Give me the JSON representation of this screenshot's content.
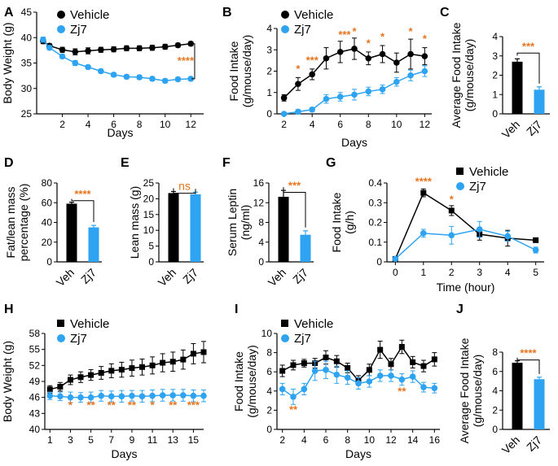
{
  "colors": {
    "vehicle": "#000000",
    "zj7": "#2ea3f2",
    "significance": "#e8741e"
  },
  "legend": {
    "vehicle": "Vehicle",
    "zj7": "Zj7"
  },
  "panels": {
    "A": {
      "letter": "A"
    },
    "B": {
      "letter": "B"
    },
    "C": {
      "letter": "C"
    },
    "D": {
      "letter": "D"
    },
    "E": {
      "letter": "E"
    },
    "F": {
      "letter": "F"
    },
    "G": {
      "letter": "G"
    },
    "H": {
      "letter": "H"
    },
    "I": {
      "letter": "I"
    },
    "J": {
      "letter": "J"
    }
  },
  "chart_data": [
    {
      "id": "A",
      "type": "line",
      "xlabel": "Days",
      "ylabel": "Body Weight (g)",
      "xlim": [
        0,
        13
      ],
      "ylim": [
        25,
        45
      ],
      "xticks": [
        2,
        4,
        6,
        8,
        10,
        12
      ],
      "yticks": [
        25,
        30,
        35,
        40,
        45
      ],
      "legend": true,
      "x": [
        0.5,
        1,
        2,
        3,
        4,
        5,
        6,
        7,
        8,
        9,
        10,
        11,
        12
      ],
      "series": [
        {
          "name": "Vehicle",
          "marker": "circle",
          "values": [
            39.3,
            38.4,
            37.6,
            37.2,
            37.4,
            37.6,
            37.7,
            37.9,
            37.9,
            38.0,
            38.2,
            38.5,
            38.8
          ],
          "errors": [
            0.5,
            0.4,
            0.5,
            0.6,
            0.6,
            0.5,
            0.5,
            0.5,
            0.5,
            0.5,
            0.5,
            0.4,
            0.4
          ]
        },
        {
          "name": "Zj7",
          "marker": "circle",
          "values": [
            39.6,
            38.0,
            36.3,
            35.0,
            34.2,
            33.4,
            32.7,
            32.3,
            32.2,
            31.9,
            31.5,
            31.8,
            31.9
          ],
          "errors": [
            0.5,
            0.4,
            0.4,
            0.5,
            0.4,
            0.4,
            0.4,
            0.4,
            0.4,
            0.4,
            0.4,
            0.4,
            0.4
          ]
        }
      ],
      "annotations": [
        {
          "text": "****",
          "x": 11.6,
          "y": 34.8
        }
      ],
      "bracket": {
        "x": 12.3,
        "y1": 38.8,
        "y2": 31.9
      }
    },
    {
      "id": "B",
      "type": "line",
      "xlabel": "Days",
      "ylabel": "Food Intake (g/mouse/day)",
      "ylabel_lines": [
        "Food Intake",
        "(g/mouse/day)"
      ],
      "xlim": [
        1.5,
        12.5
      ],
      "ylim": [
        0,
        4
      ],
      "xticks": [
        2,
        4,
        6,
        8,
        10,
        12
      ],
      "yticks": [
        0,
        1,
        2,
        3,
        4
      ],
      "legend": true,
      "x": [
        2,
        3,
        4,
        5,
        6,
        7,
        8,
        9,
        10,
        11,
        12
      ],
      "series": [
        {
          "name": "Vehicle",
          "marker": "circle",
          "values": [
            0.75,
            1.4,
            1.85,
            2.6,
            2.9,
            3.05,
            2.6,
            2.8,
            2.4,
            2.8,
            2.7
          ],
          "errors": [
            0.15,
            0.3,
            0.25,
            0.5,
            0.5,
            0.5,
            0.3,
            0.4,
            0.45,
            0.7,
            0.4
          ]
        },
        {
          "name": "Zj7",
          "marker": "circle",
          "values": [
            0.0,
            0.1,
            0.2,
            0.7,
            0.8,
            0.9,
            1.05,
            1.15,
            1.5,
            1.8,
            2.0
          ],
          "errors": [
            0.05,
            0.1,
            0.1,
            0.2,
            0.2,
            0.25,
            0.2,
            0.2,
            0.2,
            0.25,
            0.25
          ]
        }
      ],
      "annotations": [
        {
          "text": "*",
          "x": 3,
          "y": 1.95
        },
        {
          "text": "***",
          "x": 4,
          "y": 2.35
        },
        {
          "text": "***",
          "x": 6.3,
          "y": 3.55
        },
        {
          "text": "*",
          "x": 7,
          "y": 3.7
        },
        {
          "text": "*",
          "x": 8,
          "y": 3.15
        },
        {
          "text": "*",
          "x": 9,
          "y": 3.45
        },
        {
          "text": "*",
          "x": 11,
          "y": 3.7
        },
        {
          "text": "*",
          "x": 12,
          "y": 3.35
        }
      ]
    },
    {
      "id": "C",
      "type": "bar",
      "ylabel": "Average Food Intake (g/mouse/day)",
      "ylabel_lines": [
        "Average Food Intake",
        "(g/mouse/day)"
      ],
      "ylim": [
        0,
        4
      ],
      "yticks": [
        0,
        1,
        2,
        3,
        4
      ],
      "categories": [
        "Veh",
        "Zj7"
      ],
      "values": [
        2.7,
        1.25
      ],
      "errors": [
        0.15,
        0.15
      ],
      "sig": "***",
      "sig_y": 3.4
    },
    {
      "id": "D",
      "type": "bar",
      "ylabel": "Fat/lean mass percentage (%)",
      "ylabel_lines": [
        "Fat/lean mass",
        "percentage (%)"
      ],
      "ylim": [
        0,
        80
      ],
      "yticks": [
        0,
        20,
        40,
        60,
        80
      ],
      "categories": [
        "Veh",
        "Zj7"
      ],
      "values": [
        59,
        35
      ],
      "errors": [
        1.5,
        2
      ],
      "sig": "****",
      "sig_y": 67
    },
    {
      "id": "E",
      "type": "bar",
      "ylabel": "Lean mass (g)",
      "ylim": [
        0,
        25
      ],
      "yticks": [
        0,
        5,
        10,
        15,
        20,
        25
      ],
      "categories": [
        "Veh",
        "Zj7"
      ],
      "values": [
        21.8,
        21.4
      ],
      "errors": [
        0.5,
        0.7
      ],
      "sig": "ns",
      "sig_y": 23.3
    },
    {
      "id": "F",
      "type": "bar",
      "ylabel": "Serum Leptin (ng/ml)",
      "ylabel_lines": [
        "Serum Leptin",
        "(ng/ml)"
      ],
      "ylim": [
        0,
        16
      ],
      "yticks": [
        0,
        4,
        8,
        12,
        16
      ],
      "categories": [
        "Veh",
        "Zj7"
      ],
      "values": [
        13.2,
        5.5
      ],
      "errors": [
        1.3,
        0.8
      ],
      "sig": "***",
      "sig_y": 15.1
    },
    {
      "id": "G",
      "type": "line",
      "xlabel": "Time (hour)",
      "ylabel": "Food Intake (g/h)",
      "ylabel_lines": [
        "Food Intake",
        "(g/h)"
      ],
      "xlim": [
        -0.3,
        5.3
      ],
      "ylim": [
        0,
        0.4
      ],
      "xticks": [
        0,
        1,
        2,
        3,
        4,
        5
      ],
      "yticks": [
        0,
        0.1,
        0.2,
        0.3,
        0.4
      ],
      "legend": true,
      "x": [
        0,
        1,
        2,
        3,
        4,
        5
      ],
      "series": [
        {
          "name": "Vehicle",
          "marker": "square",
          "values": [
            0.015,
            0.35,
            0.26,
            0.14,
            0.12,
            0.11
          ],
          "errors": [
            0.005,
            0.02,
            0.025,
            0.03,
            0.04,
            0.01
          ]
        },
        {
          "name": "Zj7",
          "marker": "circle",
          "values": [
            0.015,
            0.145,
            0.135,
            0.165,
            0.13,
            0.06
          ],
          "errors": [
            0.005,
            0.02,
            0.045,
            0.04,
            0.025,
            0.015
          ]
        }
      ],
      "annotations": [
        {
          "text": "****",
          "x": 1,
          "y": 0.39
        },
        {
          "text": "*",
          "x": 2,
          "y": 0.3
        }
      ]
    },
    {
      "id": "H",
      "type": "line",
      "xlabel": "Days",
      "ylabel": "Body Weight (g)",
      "xlim": [
        0.5,
        16
      ],
      "ylim": [
        40,
        58
      ],
      "xticks": [
        1,
        3,
        5,
        7,
        9,
        11,
        13,
        15
      ],
      "yticks": [
        40,
        43,
        46,
        49,
        52,
        55,
        58
      ],
      "legend": true,
      "x": [
        1,
        2,
        3,
        4,
        5,
        6,
        7,
        8,
        9,
        10,
        11,
        12,
        13,
        14,
        15,
        16
      ],
      "series": [
        {
          "name": "Vehicle",
          "marker": "square",
          "values": [
            47.5,
            48.0,
            49.3,
            49.8,
            50.2,
            50.6,
            51.0,
            51.2,
            51.5,
            51.7,
            52.0,
            52.5,
            52.7,
            53.1,
            54.2,
            54.5
          ],
          "errors": [
            0.7,
            0.8,
            0.9,
            1.0,
            1.0,
            1.2,
            1.3,
            1.4,
            1.5,
            1.5,
            1.6,
            1.7,
            1.8,
            1.8,
            1.9,
            2.0
          ]
        },
        {
          "name": "Zj7",
          "marker": "circle",
          "values": [
            46.3,
            46.2,
            46.0,
            46.0,
            46.0,
            46.3,
            46.2,
            46.2,
            46.3,
            46.2,
            46.3,
            46.4,
            46.4,
            46.4,
            46.3,
            46.3
          ],
          "errors": [
            0.7,
            0.8,
            1.0,
            0.9,
            1.0,
            1.0,
            1.0,
            1.1,
            1.0,
            1.1,
            1.1,
            1.1,
            1.1,
            1.1,
            1.1,
            1.1
          ]
        }
      ],
      "annotations": [
        {
          "text": "*",
          "x": 3,
          "y": 43.9
        },
        {
          "text": "**",
          "x": 5,
          "y": 43.9
        },
        {
          "text": "**",
          "x": 7,
          "y": 43.9
        },
        {
          "text": "**",
          "x": 9,
          "y": 43.9
        },
        {
          "text": "*",
          "x": 11,
          "y": 43.9
        },
        {
          "text": "**",
          "x": 13,
          "y": 43.9
        },
        {
          "text": "***",
          "x": 15,
          "y": 43.9
        }
      ]
    },
    {
      "id": "I",
      "type": "line",
      "xlabel": "Days",
      "ylabel": "Food Intake (g/mouse/day)",
      "ylabel_lines": [
        "Food Intake",
        "(g/mouse/day)"
      ],
      "xlim": [
        1.5,
        16.5
      ],
      "ylim": [
        0,
        10
      ],
      "xticks": [
        2,
        4,
        6,
        8,
        10,
        12,
        14,
        16
      ],
      "yticks": [
        0,
        2,
        4,
        6,
        8,
        10
      ],
      "legend": true,
      "x": [
        2,
        3,
        4,
        5,
        6,
        7,
        8,
        9,
        10,
        11,
        12,
        13,
        14,
        15,
        16
      ],
      "series": [
        {
          "name": "Vehicle",
          "marker": "square",
          "values": [
            6.1,
            6.7,
            6.9,
            6.9,
            7.5,
            7.1,
            6.4,
            5.1,
            6.2,
            8.3,
            6.8,
            8.6,
            7.0,
            6.6,
            7.3
          ],
          "errors": [
            0.6,
            0.5,
            0.4,
            0.5,
            0.7,
            0.6,
            0.5,
            0.5,
            0.6,
            0.9,
            0.6,
            0.7,
            0.6,
            0.6,
            0.7
          ]
        },
        {
          "name": "Zj7",
          "marker": "circle",
          "values": [
            4.2,
            3.4,
            4.2,
            6.1,
            6.2,
            5.7,
            5.4,
            4.8,
            5.0,
            5.6,
            5.6,
            5.2,
            5.5,
            4.4,
            4.3
          ],
          "errors": [
            0.6,
            0.8,
            0.6,
            1.0,
            0.9,
            0.9,
            0.7,
            0.6,
            0.6,
            0.6,
            0.6,
            0.6,
            0.6,
            0.5,
            0.5
          ]
        }
      ],
      "annotations": [
        {
          "text": "**",
          "x": 3,
          "y": 1.7
        },
        {
          "text": "**",
          "x": 13,
          "y": 3.6
        }
      ]
    },
    {
      "id": "J",
      "type": "bar",
      "ylabel": "Average Food Intake (g/mouse/day)",
      "ylabel_lines": [
        "Average Food Intake",
        "(g/mouse/day)"
      ],
      "ylim": [
        0,
        8
      ],
      "yticks": [
        0,
        2,
        4,
        6,
        8
      ],
      "categories": [
        "Veh",
        "Zj7"
      ],
      "values": [
        6.9,
        5.2
      ],
      "errors": [
        0.2,
        0.2
      ],
      "sig": "****",
      "sig_y": 7.7
    }
  ]
}
